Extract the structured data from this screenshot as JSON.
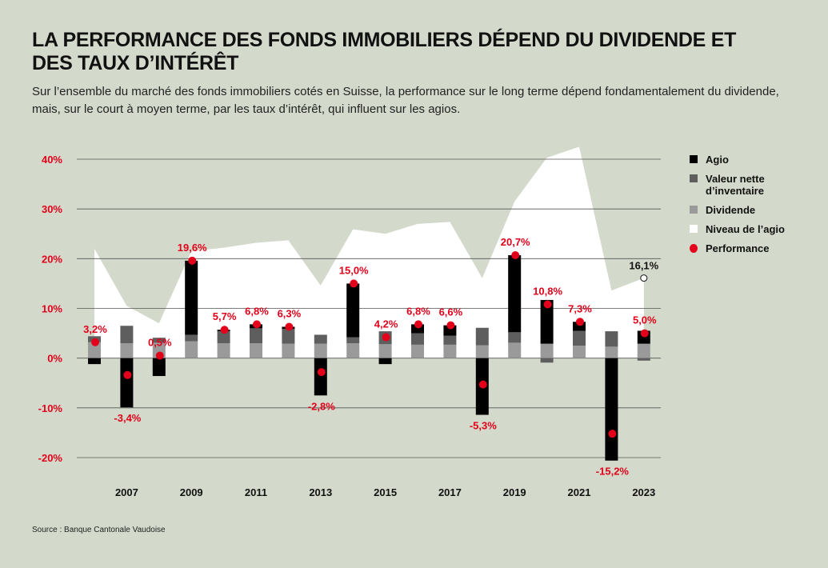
{
  "title": "LA PERFORMANCE DES FONDS IMMOBILIERS DÉPEND DU DIVIDENDE ET DES TAUX D’INTÉRÊT",
  "subtitle": "Sur l’ensemble du marché des fonds immobiliers cotés en Suisse, la performance sur le long terme dépend fondamentalement du dividende, mais, sur le court à moyen terme, par les taux d’intérêt, qui influent sur les agios.",
  "source": "Source : Banque Cantonale Vaudoise",
  "colors": {
    "agio": "#000000",
    "valeur": "#5e5e5e",
    "dividende": "#9a9a9a",
    "niveau": "#ffffff",
    "performance": "#e2001a",
    "grid": "#555555"
  },
  "legend": [
    {
      "key": "agio",
      "label": "Agio"
    },
    {
      "key": "valeur",
      "label": "Valeur nette d’inventaire"
    },
    {
      "key": "dividende",
      "label": "Dividende"
    },
    {
      "key": "niveau",
      "label": "Niveau de l’agio"
    },
    {
      "key": "performance",
      "label": "Performance"
    }
  ],
  "chart_data": {
    "type": "bar",
    "title": "LA PERFORMANCE DES FONDS IMMOBILIERS DÉPEND DU DIVIDENDE ET DES TAUX D’INTÉRÊT",
    "xlabel": "",
    "ylabel": "",
    "ylim": [
      -20,
      40
    ],
    "yticks": [
      40,
      30,
      20,
      10,
      0,
      -10,
      -20
    ],
    "ytick_labels": [
      "40%",
      "30%",
      "20%",
      "10%",
      "0%",
      "-10%",
      "-20%"
    ],
    "x": [
      2006,
      2007,
      2008,
      2009,
      2010,
      2011,
      2012,
      2013,
      2014,
      2015,
      2016,
      2017,
      2018,
      2019,
      2020,
      2021,
      2022,
      2023
    ],
    "xtick_labels": [
      "2007",
      "2009",
      "2011",
      "2013",
      "2015",
      "2017",
      "2019",
      "2021",
      "2023"
    ],
    "xtick_years": [
      2007,
      2009,
      2011,
      2013,
      2015,
      2017,
      2019,
      2021,
      2023
    ],
    "series": [
      {
        "name": "Dividende",
        "values": [
          3.2,
          3.0,
          3.1,
          3.4,
          3.0,
          3.0,
          2.9,
          2.9,
          3.0,
          2.8,
          2.7,
          2.7,
          2.6,
          3.1,
          2.9,
          2.5,
          2.3,
          2.9
        ]
      },
      {
        "name": "Valeur nette d’inventaire",
        "values": [
          1.2,
          3.5,
          1.0,
          1.3,
          2.4,
          3.0,
          3.0,
          1.8,
          1.2,
          2.6,
          2.3,
          1.8,
          3.5,
          2.1,
          -0.9,
          3.0,
          3.1,
          -0.5
        ]
      },
      {
        "name": "Agio",
        "values": [
          -1.2,
          -9.9,
          -3.6,
          14.9,
          0.3,
          0.8,
          0.4,
          -7.5,
          10.8,
          -1.2,
          1.8,
          2.1,
          -11.4,
          15.5,
          8.8,
          1.8,
          -20.6,
          2.6
        ]
      },
      {
        "name": "Niveau de l’agio",
        "values": [
          22.0,
          10.5,
          7.0,
          21.5,
          22.2,
          23.2,
          23.7,
          14.6,
          25.9,
          25.0,
          27.0,
          27.4,
          16.1,
          31.5,
          40.3,
          42.5,
          13.6,
          16.1
        ]
      },
      {
        "name": "Performance",
        "values": [
          3.2,
          -3.4,
          0.5,
          19.6,
          5.7,
          6.8,
          6.3,
          -2.8,
          15.0,
          4.2,
          6.8,
          6.6,
          -5.3,
          20.7,
          10.8,
          7.3,
          -15.2,
          5.0
        ]
      }
    ],
    "performance_labels": [
      "3,2%",
      "-3,4%",
      "0,5%",
      "19,6%",
      "5,7%",
      "6,8%",
      "6,3%",
      "-2,8%",
      "15,0%",
      "4,2%",
      "6,8%",
      "6,6%",
      "-5,3%",
      "20,7%",
      "10,8%",
      "7,3%",
      "-15,2%",
      "5,0%"
    ],
    "annotations": [
      {
        "text": "16,1%",
        "x": 2023,
        "y": 16.1,
        "note": "Niveau de l’agio 2023"
      }
    ]
  }
}
